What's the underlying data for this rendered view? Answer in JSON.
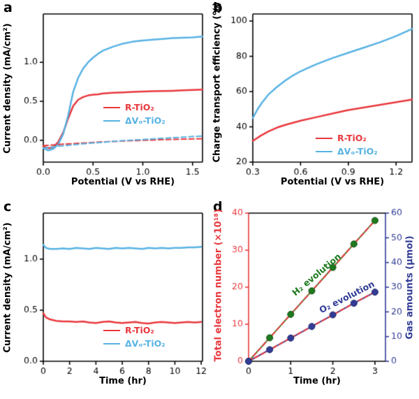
{
  "chart_data": [
    {
      "id": "a",
      "type": "line",
      "panel_label": "a",
      "x_title": "Potential (V vs RHE)",
      "y_title": "Current density (mA/cm²)",
      "xlim": [
        0,
        1.6
      ],
      "ylim": [
        -0.28,
        1.62
      ],
      "xticks": {
        "values": [
          0,
          0.5,
          1.0,
          1.5
        ],
        "labels": [
          "0.0",
          "0.5",
          "1.0",
          "1.5"
        ]
      },
      "yticks": {
        "values": [
          0,
          0.5,
          1.0
        ],
        "labels": [
          "0.0",
          "0.5",
          "1.0"
        ]
      },
      "series": [
        {
          "name": "R-TiO₂ (light)",
          "color": "#e8383d",
          "width": 2.5,
          "x": [
            0,
            0.05,
            0.1,
            0.15,
            0.2,
            0.25,
            0.3,
            0.35,
            0.4,
            0.45,
            0.5,
            0.55,
            0.6,
            0.7,
            0.8,
            0.9,
            1.0,
            1.1,
            1.2,
            1.3,
            1.4,
            1.5,
            1.6
          ],
          "y": [
            -0.08,
            -0.1,
            -0.09,
            -0.02,
            0.1,
            0.28,
            0.44,
            0.52,
            0.555,
            0.575,
            0.585,
            0.59,
            0.6,
            0.61,
            0.615,
            0.62,
            0.625,
            0.63,
            0.632,
            0.635,
            0.64,
            0.645,
            0.65
          ]
        },
        {
          "name": "ΔVₒ-TiO₂ (light)",
          "color": "#57b2e3",
          "width": 2.5,
          "x": [
            0,
            0.05,
            0.1,
            0.15,
            0.2,
            0.25,
            0.3,
            0.35,
            0.4,
            0.45,
            0.5,
            0.55,
            0.6,
            0.7,
            0.8,
            0.9,
            1.0,
            1.1,
            1.2,
            1.3,
            1.4,
            1.5,
            1.6
          ],
          "y": [
            -0.1,
            -0.13,
            -0.11,
            -0.05,
            0.08,
            0.32,
            0.62,
            0.8,
            0.92,
            1.0,
            1.06,
            1.11,
            1.15,
            1.2,
            1.24,
            1.265,
            1.28,
            1.29,
            1.3,
            1.31,
            1.315,
            1.32,
            1.33
          ]
        },
        {
          "name": "R-TiO₂ (dark)",
          "color": "#e8383d",
          "width": 2,
          "dash": [
            7,
            4
          ],
          "x": [
            0,
            0.2,
            0.4,
            0.6,
            0.8,
            1.0,
            1.2,
            1.4,
            1.6
          ],
          "y": [
            -0.07,
            -0.05,
            -0.035,
            -0.02,
            -0.01,
            0,
            0.008,
            0.015,
            0.02
          ]
        },
        {
          "name": "ΔVₒ-TiO₂ (dark)",
          "color": "#57b2e3",
          "width": 2,
          "dash": [
            7,
            4
          ],
          "x": [
            0,
            0.2,
            0.4,
            0.6,
            0.8,
            1.0,
            1.2,
            1.4,
            1.6
          ],
          "y": [
            -0.1,
            -0.07,
            -0.045,
            -0.025,
            -0.005,
            0.01,
            0.025,
            0.04,
            0.055
          ]
        }
      ],
      "legend": {
        "items": [
          {
            "label": "R-TiO₂",
            "color": "#e8383d"
          },
          {
            "label": "ΔVₒ-TiO₂",
            "color": "#57b2e3"
          }
        ]
      }
    },
    {
      "id": "b",
      "type": "line",
      "panel_label": "b",
      "x_title": "Potential (V vs RHE)",
      "y_title": "Charge transport efficiency (%)",
      "xlim": [
        0.3,
        1.3
      ],
      "ylim": [
        20,
        104
      ],
      "xticks": {
        "values": [
          0.3,
          0.6,
          0.9,
          1.2
        ],
        "labels": [
          "0.3",
          "0.6",
          "0.9",
          "1.2"
        ]
      },
      "yticks": {
        "values": [
          20,
          40,
          60,
          80,
          100
        ],
        "labels": [
          "20",
          "40",
          "60",
          "80",
          "100"
        ]
      },
      "series": [
        {
          "name": "ΔVₒ-TiO₂",
          "color": "#57b2e3",
          "width": 2.5,
          "x": [
            0.3,
            0.33,
            0.36,
            0.4,
            0.45,
            0.5,
            0.55,
            0.6,
            0.65,
            0.7,
            0.8,
            0.9,
            1.0,
            1.1,
            1.2,
            1.3
          ],
          "y": [
            45,
            50,
            54,
            58.5,
            62.5,
            66,
            69,
            71.5,
            73.5,
            75.5,
            79,
            82,
            85,
            88,
            91.5,
            95.5
          ]
        },
        {
          "name": "R-TiO₂",
          "color": "#e8383d",
          "width": 2.5,
          "x": [
            0.3,
            0.35,
            0.4,
            0.45,
            0.5,
            0.6,
            0.7,
            0.8,
            0.9,
            1.0,
            1.1,
            1.2,
            1.3
          ],
          "y": [
            32,
            35,
            37.5,
            39.5,
            41,
            43.5,
            45.5,
            47.5,
            49.5,
            51,
            52.5,
            54,
            55.5
          ]
        }
      ],
      "legend": {
        "items": [
          {
            "label": "R-TiO₂",
            "color": "#e8383d"
          },
          {
            "label": "ΔVₒ-TiO₂",
            "color": "#57b2e3"
          }
        ]
      }
    },
    {
      "id": "c",
      "type": "line",
      "panel_label": "c",
      "x_title": "Time (hr)",
      "y_title": "Current density (mA/cm²)",
      "xlim": [
        0,
        12.1
      ],
      "ylim": [
        0,
        1.45
      ],
      "xticks": {
        "values": [
          0,
          2,
          4,
          6,
          8,
          10,
          12
        ],
        "labels": [
          "0",
          "2",
          "4",
          "6",
          "8",
          "10",
          "12"
        ]
      },
      "yticks": {
        "values": [
          0,
          0.5,
          1.0
        ],
        "labels": [
          "0.0",
          "0.5",
          "1.0"
        ]
      },
      "series": [
        {
          "name": "ΔVₒ-TiO₂",
          "color": "#57b2e3",
          "width": 2.5,
          "x": [
            0,
            0.2,
            0.5,
            1,
            1.5,
            2,
            2.5,
            3,
            3.5,
            4,
            4.5,
            5,
            5.5,
            6,
            6.5,
            7,
            7.5,
            8,
            8.5,
            9,
            9.5,
            10,
            10.5,
            11,
            11.5,
            12
          ],
          "y": [
            1.14,
            1.11,
            1.1,
            1.1,
            1.105,
            1.1,
            1.11,
            1.105,
            1.1,
            1.11,
            1.105,
            1.1,
            1.11,
            1.105,
            1.11,
            1.105,
            1.1,
            1.11,
            1.105,
            1.11,
            1.105,
            1.11,
            1.11,
            1.115,
            1.115,
            1.12
          ]
        },
        {
          "name": "R-TiO₂",
          "color": "#e8383d",
          "width": 2.5,
          "x": [
            0,
            0.2,
            0.5,
            1,
            1.5,
            2,
            2.5,
            3,
            3.5,
            4,
            4.5,
            5,
            5.5,
            6,
            6.5,
            7,
            7.5,
            8,
            8.5,
            9,
            9.5,
            10,
            10.5,
            11,
            11.5,
            12
          ],
          "y": [
            0.47,
            0.43,
            0.41,
            0.395,
            0.39,
            0.39,
            0.385,
            0.39,
            0.38,
            0.375,
            0.385,
            0.39,
            0.38,
            0.375,
            0.38,
            0.385,
            0.375,
            0.37,
            0.38,
            0.385,
            0.38,
            0.375,
            0.38,
            0.385,
            0.38,
            0.385
          ]
        }
      ],
      "legend": {
        "items": [
          {
            "label": "R-TiO₂",
            "color": "#e8383d"
          },
          {
            "label": "ΔVₒ-TiO₂",
            "color": "#57b2e3"
          }
        ]
      }
    },
    {
      "id": "d",
      "type": "line+scatter",
      "panel_label": "d",
      "x_title": "Time (hr)",
      "y_left_title": "Total electron number (×10¹⁸)",
      "y_right_title": "Gas amounts (μmol)",
      "axis_colors": {
        "left": "#e8383d",
        "right": "#323c96"
      },
      "xlim": [
        0,
        3.25
      ],
      "ylim": [
        0,
        40
      ],
      "y2lim": [
        0,
        60
      ],
      "xticks": {
        "values": [
          0,
          1,
          2,
          3
        ],
        "labels": [
          "0",
          "1",
          "2",
          "3"
        ]
      },
      "yticks": {
        "values": [
          0,
          10,
          20,
          30,
          40
        ],
        "labels": [
          "0",
          "10",
          "20",
          "30",
          "40"
        ]
      },
      "y2ticks": {
        "values": [
          0,
          10,
          20,
          30,
          40,
          50,
          60
        ],
        "labels": [
          "0",
          "10",
          "20",
          "30",
          "40",
          "50",
          "60"
        ]
      },
      "series": [
        {
          "name": "H₂ evolution (gas, μmol)",
          "axis": "y2",
          "color": "#2e8b2e",
          "width": 2,
          "x": [
            0,
            0.5,
            1,
            1.5,
            2,
            2.5,
            3
          ],
          "y": [
            0,
            9.5,
            19,
            28.5,
            38,
            47.5,
            57
          ],
          "marker": {
            "r": 4.5,
            "fill": "#1e7a1e",
            "stroke": "#0c4a0c"
          }
        },
        {
          "name": "O₂ evolution (gas, μmol)",
          "axis": "y2",
          "color": "#323c96",
          "width": 2,
          "x": [
            0,
            0.5,
            1,
            1.5,
            2,
            2.5,
            3
          ],
          "y": [
            0,
            4.7,
            9.4,
            14.1,
            18.8,
            23.5,
            28
          ],
          "marker": {
            "r": 4.5,
            "fill": "#323c96",
            "stroke": "#1b2260"
          }
        },
        {
          "name": "Total electron number for H₂ (×10¹⁸)",
          "axis": "y",
          "color": "#e8383d",
          "width": 2,
          "dash": [
            6,
            4
          ],
          "x": [
            0,
            0.5,
            1,
            1.5,
            2,
            2.5,
            3
          ],
          "y": [
            0,
            6.3,
            12.7,
            19,
            25.3,
            31.7,
            38
          ]
        },
        {
          "name": "Total electron number for O₂ (×10¹⁸)",
          "axis": "y",
          "color": "#e8383d",
          "width": 2,
          "dash": [
            6,
            4
          ],
          "x": [
            0,
            0.5,
            1,
            1.5,
            2,
            2.5,
            3
          ],
          "y": [
            0,
            3.1,
            6.3,
            9.4,
            12.5,
            15.7,
            18.7
          ]
        }
      ],
      "annotations": [
        {
          "text": "H₂ evolution",
          "color": "#1e7a1e"
        },
        {
          "text": "O₂ evolution",
          "color": "#323c96"
        }
      ]
    }
  ]
}
